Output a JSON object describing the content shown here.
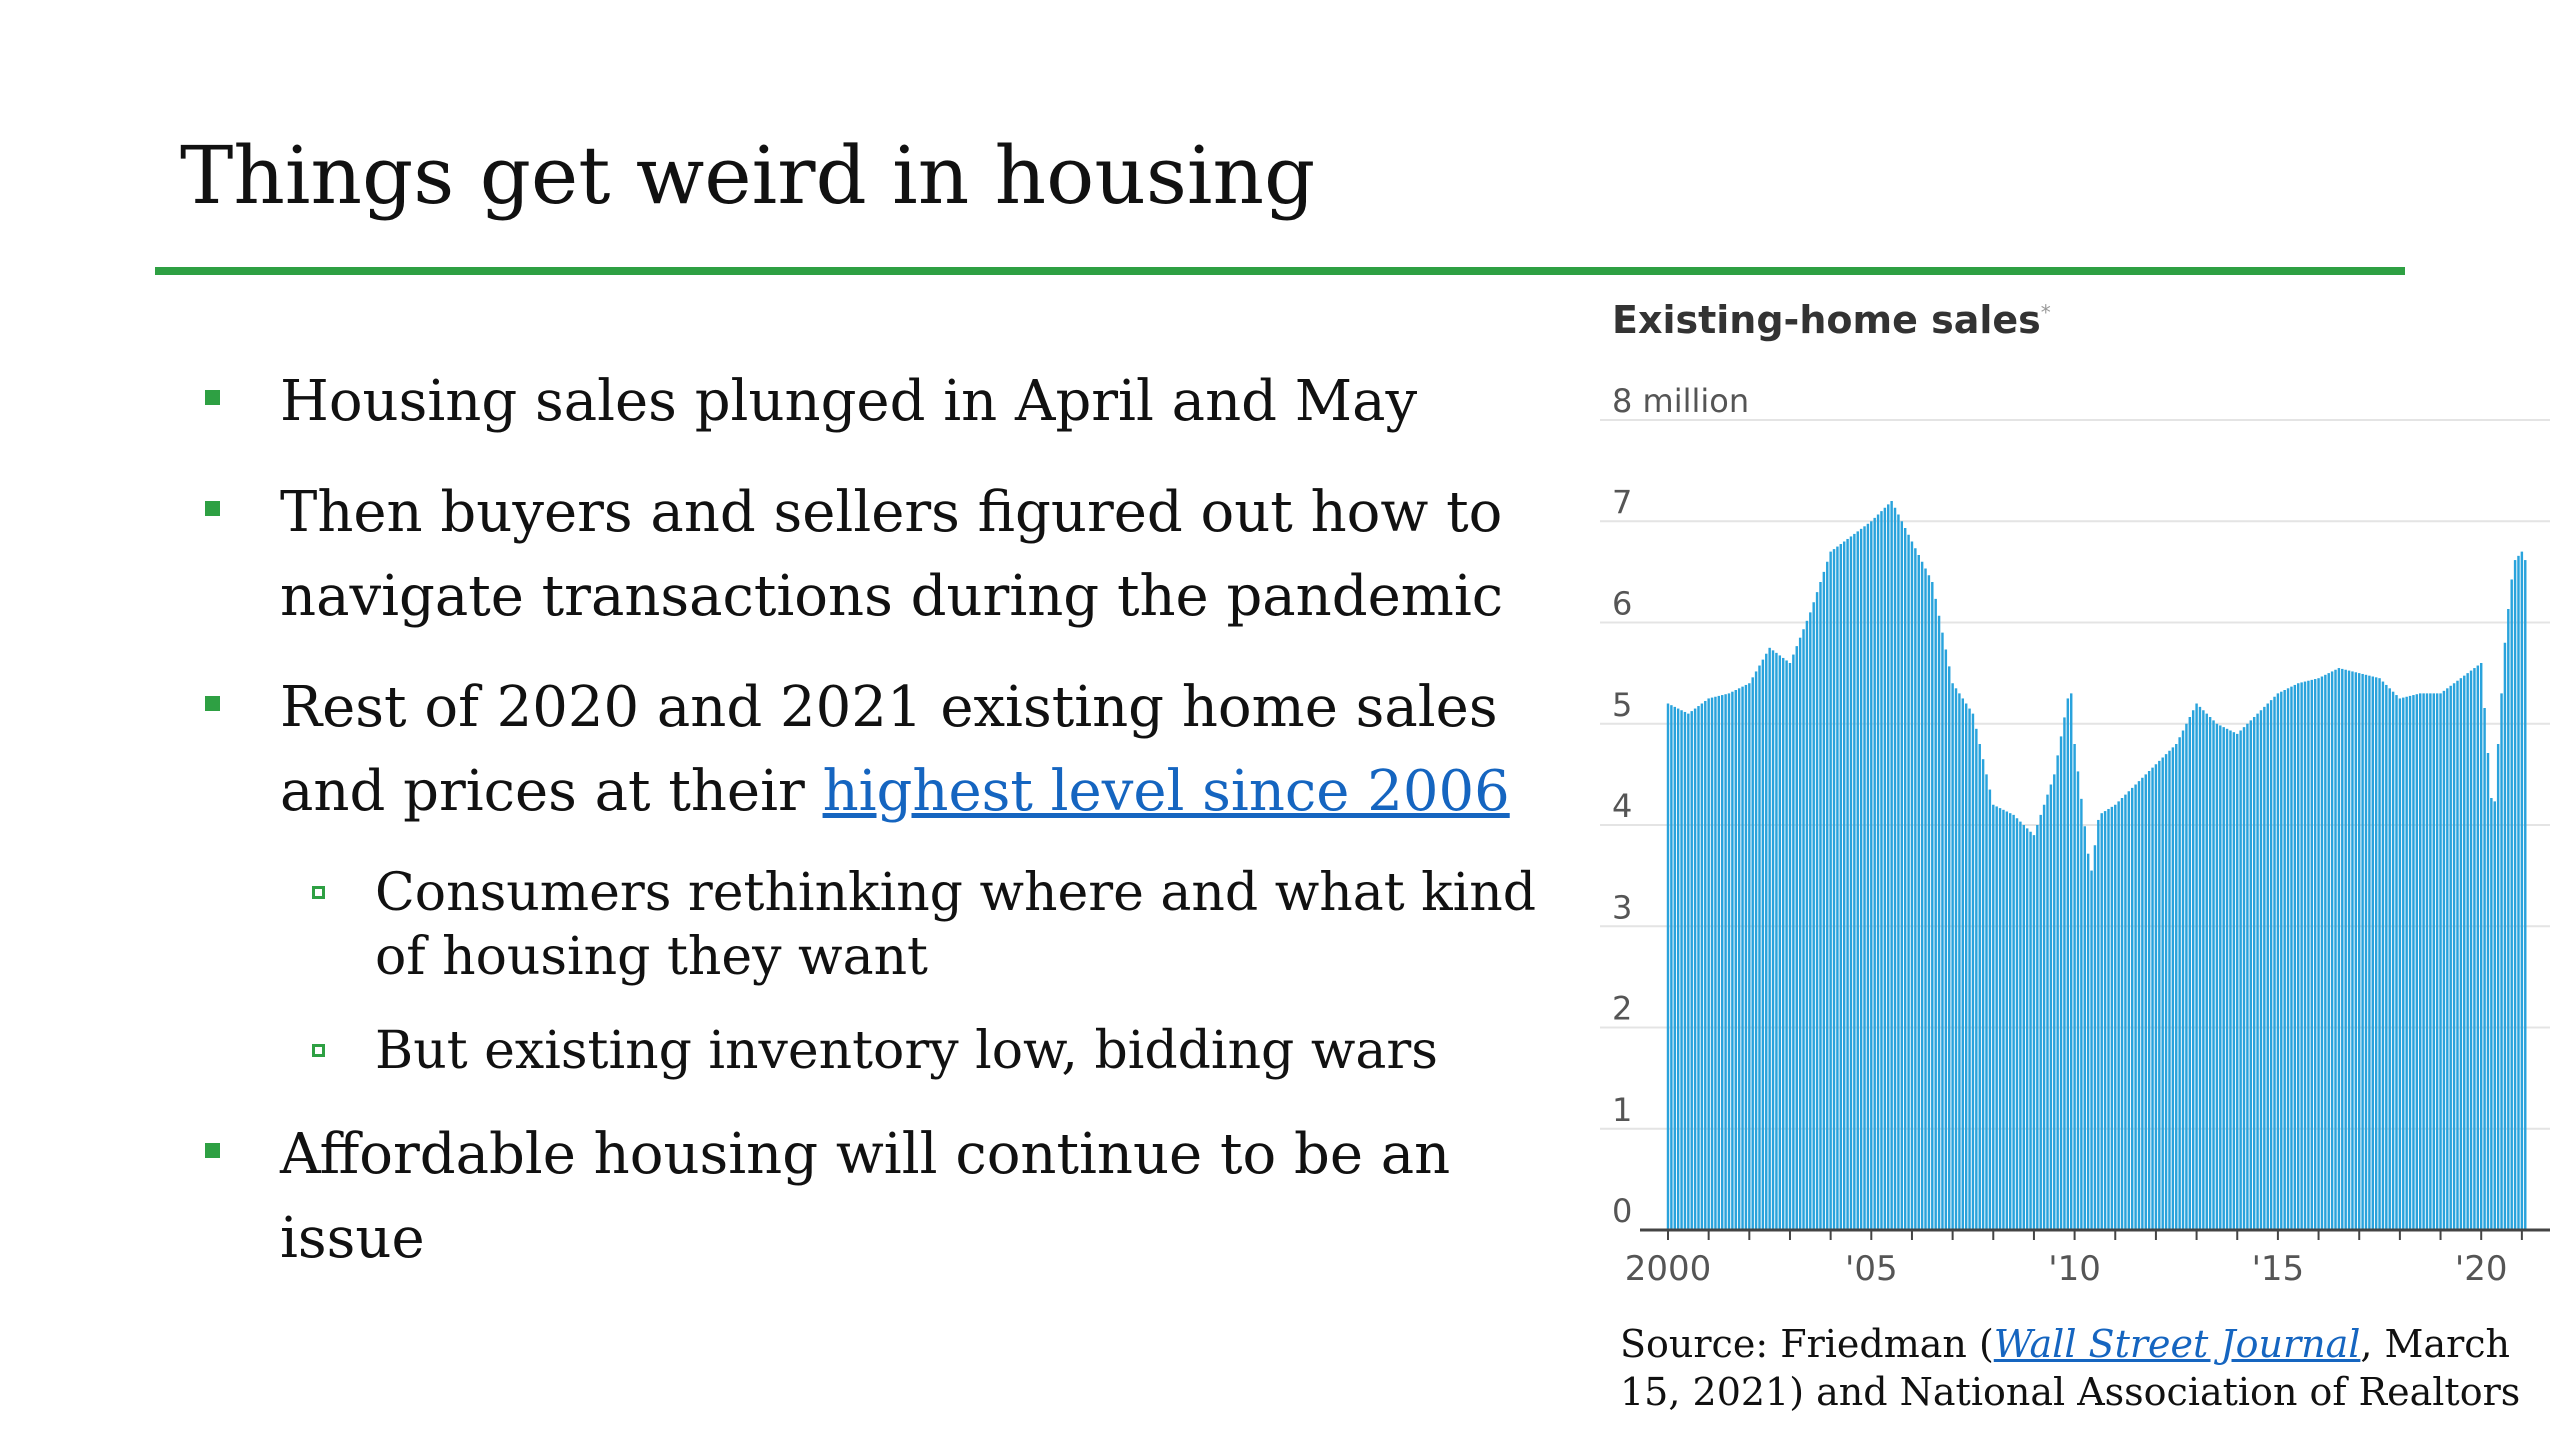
{
  "slide": {
    "title": "Things get weird in housing",
    "bullets": [
      {
        "text": "Housing sales plunged in April and May"
      },
      {
        "text": "Then buyers and sellers figured out how to navigate transactions during the pandemic"
      },
      {
        "text_before": "Rest of 2020 and 2021 existing home sales and prices at their ",
        "link_text": "highest level since 2006"
      },
      {
        "text": "Affordable housing will continue to be an issue"
      }
    ],
    "sub_bullets": [
      {
        "text": "Consumers rethinking where and what kind of housing they want"
      },
      {
        "text": "But existing inventory low, bidding wars"
      }
    ],
    "source": {
      "prefix": "Source: Friedman (",
      "publication": "Wall Street Journal",
      "suffix": ", March 15, 2021) and National Association of Realtors"
    }
  },
  "colors": {
    "accent_green": "#2ea043",
    "bar_blue": "#29a3dc",
    "link_blue": "#1565c0",
    "grid": "#e4e4e4"
  },
  "chart_data": {
    "type": "bar",
    "title": "Existing-home sales",
    "title_footnote_mark": "*",
    "y_top_label": "8 million",
    "ylim": [
      0,
      8
    ],
    "y_ticks": [
      0,
      1,
      2,
      3,
      4,
      5,
      6,
      7
    ],
    "x_tick_labels": [
      "2000",
      "'05",
      "'10",
      "'15",
      "'20"
    ],
    "x_ticks": [
      2000,
      2005,
      2010,
      2015,
      2020
    ],
    "xlim": [
      2000,
      2021.2
    ],
    "grid": true,
    "legend": "none",
    "x": [
      2000.0,
      2000.5,
      2001.0,
      2001.5,
      2002.0,
      2002.5,
      2003.0,
      2003.5,
      2004.0,
      2004.5,
      2005.0,
      2005.5,
      2006.0,
      2006.5,
      2007.0,
      2007.5,
      2008.0,
      2008.5,
      2009.0,
      2009.5,
      2009.9,
      2010.0,
      2010.4,
      2010.6,
      2011.0,
      2011.5,
      2012.0,
      2012.5,
      2013.0,
      2013.5,
      2014.0,
      2014.5,
      2015.0,
      2015.5,
      2016.0,
      2016.5,
      2017.0,
      2017.5,
      2018.0,
      2018.5,
      2019.0,
      2019.5,
      2020.0,
      2020.3,
      2020.4,
      2020.6,
      2020.8,
      2021.0,
      2021.1
    ],
    "values": [
      5.2,
      5.1,
      5.25,
      5.3,
      5.4,
      5.75,
      5.6,
      6.1,
      6.7,
      6.85,
      7.0,
      7.2,
      6.8,
      6.4,
      5.4,
      5.1,
      4.2,
      4.1,
      3.9,
      4.5,
      5.4,
      4.8,
      3.5,
      4.1,
      4.2,
      4.4,
      4.6,
      4.8,
      5.2,
      5.0,
      4.9,
      5.1,
      5.3,
      5.4,
      5.45,
      5.55,
      5.5,
      5.45,
      5.25,
      5.3,
      5.3,
      5.45,
      5.6,
      4.0,
      4.7,
      5.9,
      6.6,
      6.7,
      6.6
    ]
  }
}
